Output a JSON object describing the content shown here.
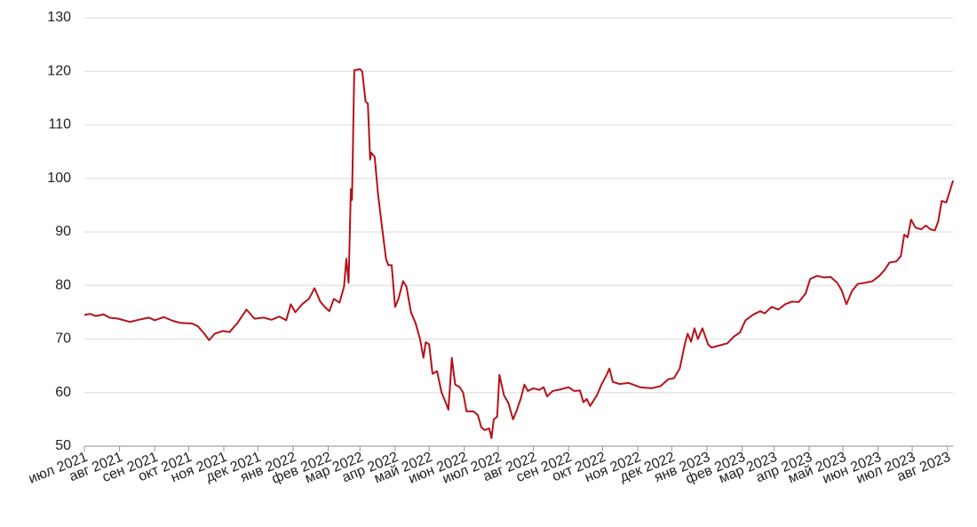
{
  "chart_data": {
    "type": "line",
    "color": "#b5121b",
    "grid": true,
    "ylim": [
      50,
      130
    ],
    "yticks": [
      50,
      60,
      70,
      80,
      90,
      100,
      110,
      120,
      130
    ],
    "xlim": [
      0,
      766
    ],
    "xticks": [
      {
        "value": 0,
        "label": "июл 2021"
      },
      {
        "value": 31,
        "label": "авг 2021"
      },
      {
        "value": 62,
        "label": "сен 2021"
      },
      {
        "value": 92,
        "label": "окт 2021"
      },
      {
        "value": 123,
        "label": "ноя 2021"
      },
      {
        "value": 153,
        "label": "дек 2021"
      },
      {
        "value": 184,
        "label": "янв 2022"
      },
      {
        "value": 215,
        "label": "фев 2022"
      },
      {
        "value": 243,
        "label": "мар 2022"
      },
      {
        "value": 274,
        "label": "апр 2022"
      },
      {
        "value": 304,
        "label": "май 2022"
      },
      {
        "value": 335,
        "label": "июн 2022"
      },
      {
        "value": 365,
        "label": "июл 2022"
      },
      {
        "value": 396,
        "label": "авг 2022"
      },
      {
        "value": 427,
        "label": "сен 2022"
      },
      {
        "value": 457,
        "label": "окт 2022"
      },
      {
        "value": 488,
        "label": "ноя 2022"
      },
      {
        "value": 518,
        "label": "дек 2022"
      },
      {
        "value": 549,
        "label": "янв 2023"
      },
      {
        "value": 580,
        "label": "фев 2023"
      },
      {
        "value": 608,
        "label": "мар 2023"
      },
      {
        "value": 639,
        "label": "апр 2023"
      },
      {
        "value": 669,
        "label": "май 2023"
      },
      {
        "value": 700,
        "label": "июн 2023"
      },
      {
        "value": 730,
        "label": "июл 2023"
      },
      {
        "value": 761,
        "label": "авг 2023"
      }
    ],
    "x": [
      0,
      5,
      10,
      17,
      22,
      30,
      40,
      50,
      57,
      62,
      70,
      78,
      85,
      95,
      100,
      105,
      110,
      115,
      122,
      128,
      135,
      143,
      150,
      158,
      165,
      172,
      178,
      182,
      186,
      192,
      198,
      203,
      208,
      212,
      216,
      220,
      225,
      229,
      231,
      233,
      235,
      236,
      238,
      243,
      245,
      248,
      250,
      252,
      253,
      256,
      259,
      263,
      266,
      268,
      271,
      274,
      277,
      281,
      284,
      288,
      292,
      296,
      299,
      301,
      304,
      307,
      311,
      315,
      318,
      321,
      323,
      324,
      327,
      331,
      334,
      337,
      343,
      347,
      350,
      353,
      357,
      359,
      361,
      364,
      366,
      370,
      374,
      378,
      381,
      385,
      388,
      391,
      396,
      401,
      405,
      408,
      413,
      420,
      427,
      432,
      437,
      440,
      443,
      446,
      452,
      456,
      461,
      463,
      466,
      472,
      480,
      490,
      500,
      508,
      515,
      520,
      525,
      530,
      532,
      535,
      538,
      541,
      545,
      550,
      553,
      560,
      567,
      573,
      578,
      583,
      590,
      596,
      600,
      606,
      612,
      618,
      624,
      630,
      636,
      640,
      646,
      652,
      658,
      664,
      668,
      672,
      677,
      682,
      688,
      695,
      701,
      706,
      710,
      716,
      720,
      723,
      726,
      729,
      733,
      738,
      742,
      746,
      750,
      753,
      756,
      760,
      763,
      766
    ],
    "values": [
      74.5,
      74.7,
      74.3,
      74.6,
      74.0,
      73.8,
      73.2,
      73.7,
      74.0,
      73.5,
      74.1,
      73.4,
      73.0,
      72.9,
      72.4,
      71.2,
      69.8,
      71.0,
      71.5,
      71.3,
      73.0,
      75.5,
      73.8,
      74.0,
      73.6,
      74.2,
      73.5,
      76.5,
      75.0,
      76.5,
      77.5,
      79.5,
      77.0,
      76.0,
      75.2,
      77.5,
      76.8,
      79.8,
      85.0,
      80.5,
      98.0,
      96.0,
      120.2,
      120.4,
      120.0,
      114.3,
      114.0,
      103.5,
      104.8,
      104.0,
      97.0,
      90.0,
      85.0,
      83.8,
      83.8,
      76.0,
      77.5,
      80.8,
      79.8,
      75.0,
      73.0,
      70.0,
      66.5,
      69.4,
      69.0,
      63.5,
      64.0,
      60.0,
      58.5,
      56.8,
      63.0,
      66.5,
      61.5,
      61.0,
      60.0,
      56.5,
      56.5,
      55.8,
      53.5,
      53.0,
      53.3,
      51.5,
      55.0,
      55.5,
      63.3,
      59.5,
      58.0,
      55.0,
      56.5,
      59.0,
      61.5,
      60.3,
      60.8,
      60.5,
      61.0,
      59.3,
      60.3,
      60.6,
      61.0,
      60.3,
      60.4,
      58.2,
      58.8,
      57.5,
      59.5,
      61.5,
      63.5,
      64.5,
      62.0,
      61.6,
      61.8,
      61.0,
      60.8,
      61.2,
      62.5,
      62.7,
      64.5,
      69.5,
      71.0,
      69.5,
      72.0,
      70.0,
      72.0,
      69.0,
      68.4,
      68.8,
      69.2,
      70.5,
      71.2,
      73.5,
      74.6,
      75.2,
      74.8,
      76.0,
      75.5,
      76.5,
      77.0,
      76.9,
      78.5,
      81.2,
      81.8,
      81.5,
      81.6,
      80.5,
      79.0,
      76.5,
      79.0,
      80.3,
      80.5,
      80.8,
      81.8,
      83.0,
      84.3,
      84.5,
      85.5,
      89.5,
      89.0,
      92.3,
      90.8,
      90.5,
      91.2,
      90.5,
      90.3,
      92.0,
      95.8,
      95.5,
      97.5,
      99.6
    ]
  }
}
